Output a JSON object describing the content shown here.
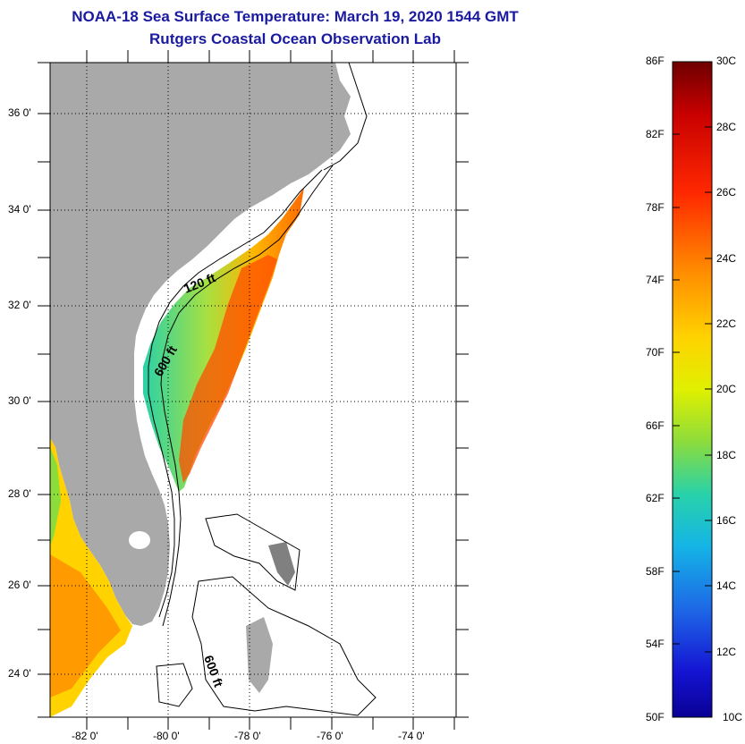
{
  "title": "NOAA-18 Sea Surface Temperature:  March 19, 2020 1544 GMT",
  "subtitle": "Rutgers Coastal Ocean Observation Lab",
  "map": {
    "lat_labels": [
      "36 0'",
      "34 0'",
      "32 0'",
      "30 0'",
      "28 0'",
      "26 0'",
      "24 0'"
    ],
    "lon_labels": [
      "-82 0'",
      "-80 0'",
      "-78 0'",
      "-76 0'",
      "-74 0'"
    ],
    "contour_labels": [
      "120 ft",
      "600 ft",
      "600 ft"
    ],
    "land_color": "#a9a9a9",
    "water_color": "#ffffff"
  },
  "colorbar": {
    "fahrenheit_labels": [
      "86F",
      "82F",
      "78F",
      "74F",
      "70F",
      "66F",
      "62F",
      "58F",
      "54F",
      "50F"
    ],
    "celsius_labels": [
      "30C",
      "28C",
      "26C",
      "24C",
      "22C",
      "20C",
      "18C",
      "16C",
      "14C",
      "12C",
      "10C"
    ],
    "colors": [
      "#6e0000",
      "#c80000",
      "#ff3000",
      "#ff8c00",
      "#ffd200",
      "#e6f000",
      "#8cdc3c",
      "#28d2aa",
      "#14b4e6",
      "#1e64e6",
      "#1414d2",
      "#0a0096"
    ]
  }
}
